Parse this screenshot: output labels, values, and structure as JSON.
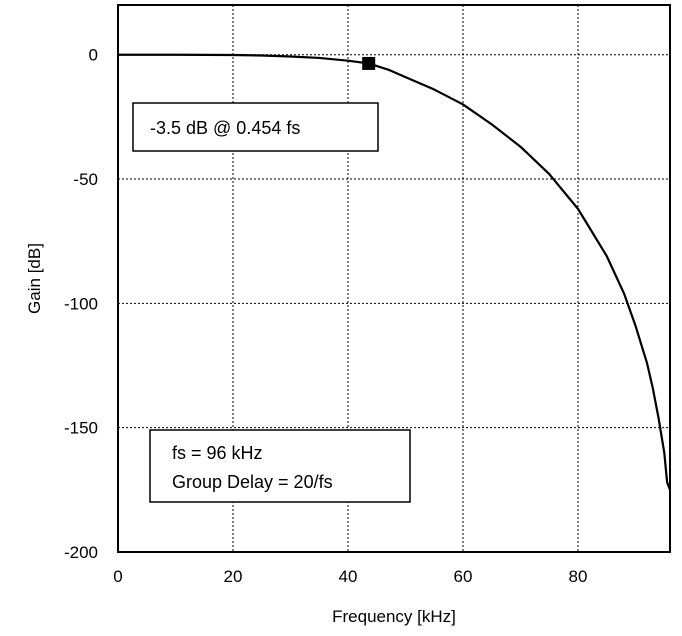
{
  "chart_data": {
    "type": "line",
    "title": "",
    "xlabel": "Frequency [kHz]",
    "ylabel": "Gain [dB]",
    "xlim": [
      0,
      96
    ],
    "ylim": [
      -200,
      20
    ],
    "x_ticks": [
      0,
      20,
      40,
      60,
      80
    ],
    "y_ticks": [
      0,
      -50,
      -100,
      -150,
      -200
    ],
    "x_tick_labels": [
      "0",
      "20",
      "40",
      "60",
      "80"
    ],
    "y_tick_labels": [
      "0",
      "-50",
      "-100",
      "-150",
      "-200"
    ],
    "grid": true,
    "series": [
      {
        "x": [
          0,
          10,
          20,
          25,
          30,
          35,
          40,
          43.6,
          47,
          50,
          55,
          60,
          65,
          70,
          75,
          80,
          85,
          88,
          90,
          92,
          93,
          94,
          95,
          95.5,
          96
        ],
        "y": [
          0,
          0,
          -0.1,
          -0.3,
          -0.7,
          -1.3,
          -2.4,
          -3.5,
          -6,
          -9,
          -14,
          -20,
          -28,
          -37,
          -48,
          -62,
          -81,
          -96,
          -109,
          -124,
          -134,
          -146,
          -160,
          -172,
          -175
        ]
      }
    ],
    "marker": {
      "x": 43.6,
      "y": -3.5
    },
    "annotations": [
      {
        "lines": [
          "-3.5 dB @ 0.454 fs"
        ]
      },
      {
        "lines": [
          "fs = 96 kHz",
          "Group Delay = 20/fs"
        ]
      }
    ]
  }
}
